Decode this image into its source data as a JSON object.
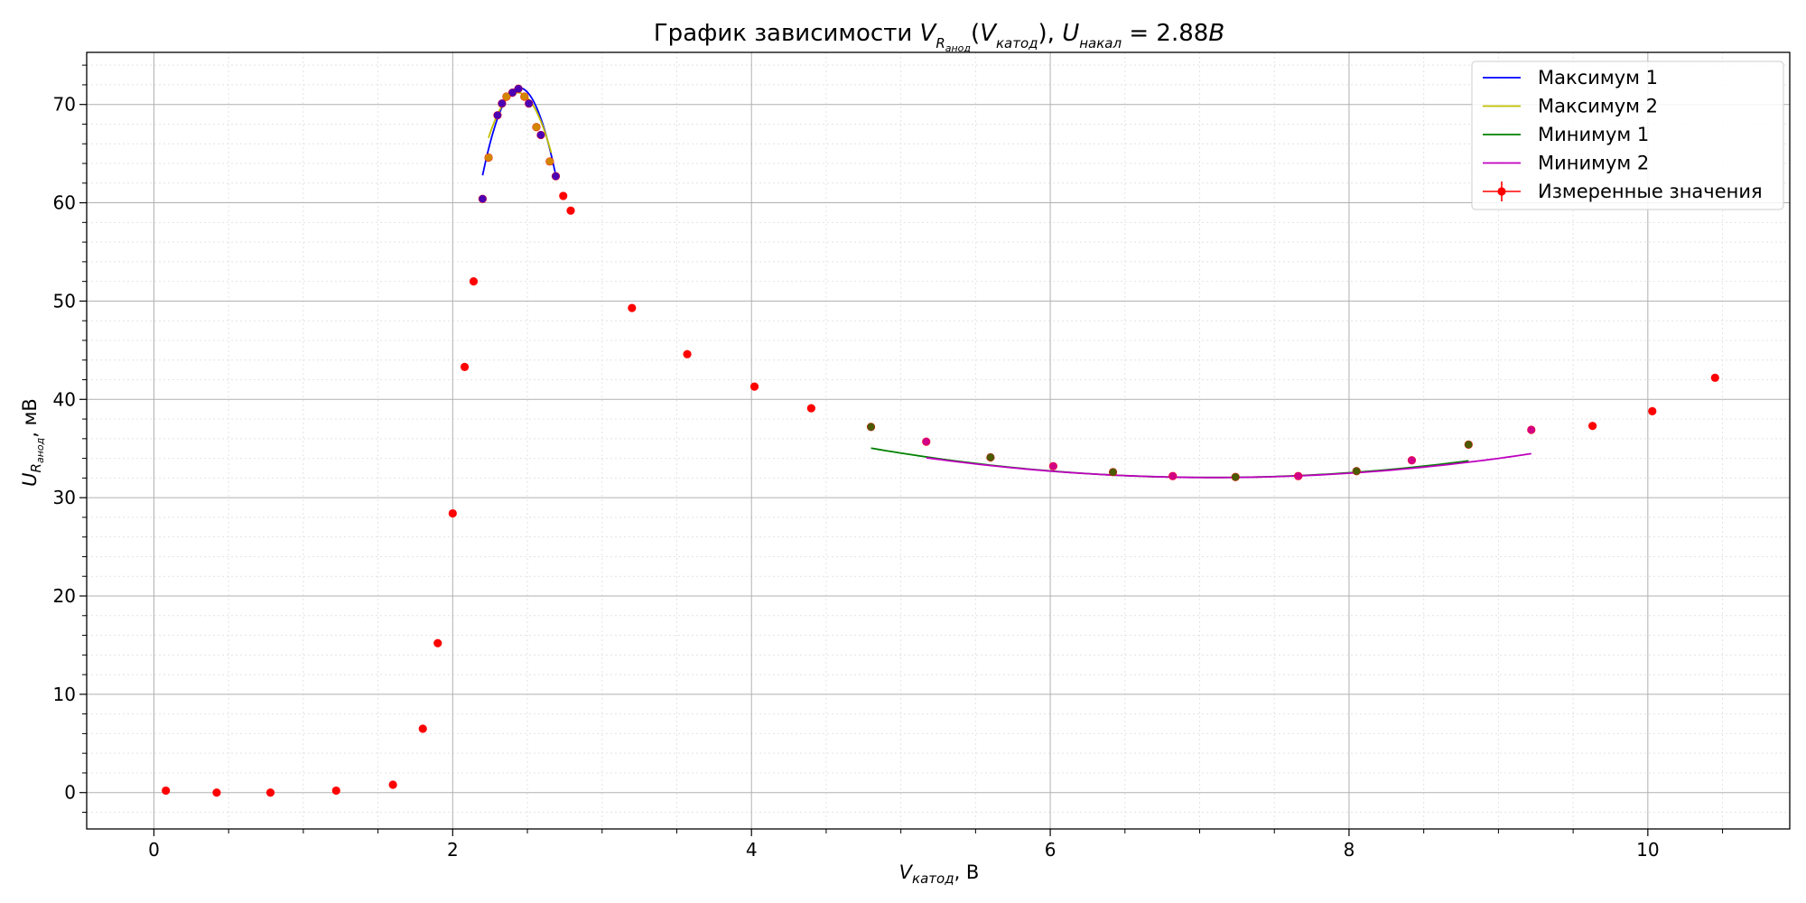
{
  "chart_data": {
    "type": "scatter",
    "title": {
      "prefix": "График зависимости ",
      "v": "V",
      "v_sub_r": "R",
      "v_sub_anod": "анод",
      "arg_open": "(",
      "arg_v": "V",
      "arg_sub": "катод",
      "arg_close": "), ",
      "u": "U",
      "u_sub": "накал",
      "eq": " = 2.88",
      "unit": "B"
    },
    "xlabel": {
      "main": "V",
      "sub": "катод",
      "unit": ", В"
    },
    "ylabel": {
      "main": "U",
      "sub_r": "R",
      "sub_anod": "анод",
      "unit": ", мВ"
    },
    "xlim": [
      -0.45,
      10.95
    ],
    "ylim": [
      -3.7,
      75.3
    ],
    "grid": true,
    "legend_placement": "top-right",
    "x_ticks": [
      0,
      2,
      4,
      6,
      8,
      10
    ],
    "y_ticks": [
      0,
      10,
      20,
      30,
      40,
      50,
      60,
      70
    ],
    "x_tick_labels": [
      "0",
      "2",
      "4",
      "6",
      "8",
      "10"
    ],
    "y_tick_labels": [
      "0",
      "10",
      "20",
      "30",
      "40",
      "50",
      "60",
      "70"
    ],
    "series": [
      {
        "name": "Измеренные значения",
        "kind": "points",
        "color": "#ff0000",
        "x": [
          0.08,
          0.42,
          0.78,
          1.22,
          1.6,
          1.8,
          1.9,
          2.0,
          2.08,
          2.14,
          2.2,
          2.24,
          2.3,
          2.33,
          2.36,
          2.4,
          2.44,
          2.48,
          2.51,
          2.56,
          2.59,
          2.65,
          2.69,
          2.74,
          2.79,
          3.2,
          3.57,
          4.02,
          4.4,
          4.8,
          5.17,
          5.6,
          6.02,
          6.42,
          6.82,
          7.24,
          7.66,
          8.05,
          8.42,
          8.8,
          9.22,
          9.63,
          10.03,
          10.45
        ],
        "y": [
          0.2,
          0.0,
          0.0,
          0.2,
          0.8,
          6.5,
          15.2,
          28.4,
          43.3,
          52.0,
          60.4,
          64.6,
          68.9,
          70.1,
          70.8,
          71.2,
          71.6,
          70.8,
          70.1,
          67.7,
          66.9,
          64.2,
          62.7,
          60.7,
          59.2,
          49.3,
          44.6,
          41.3,
          39.1,
          37.2,
          35.7,
          34.1,
          33.2,
          32.6,
          32.2,
          32.1,
          32.2,
          32.7,
          33.8,
          35.4,
          36.9,
          37.3,
          38.8,
          42.2
        ]
      },
      {
        "name": "Максимум 1",
        "kind": "fit",
        "color": "#0000ff",
        "fit": {
          "a": -148.5,
          "h": 2.445,
          "k": 71.7,
          "x_from": 2.2,
          "x_to": 2.69
        },
        "marker_x": [
          2.2,
          2.3,
          2.33,
          2.4,
          2.44,
          2.51,
          2.59,
          2.69
        ],
        "marker_y": [
          60.4,
          68.9,
          70.1,
          71.2,
          71.6,
          70.1,
          66.9,
          62.7
        ]
      },
      {
        "name": "Максимум 2",
        "kind": "fit",
        "color": "#bfbf00",
        "fit": {
          "a": -121.0,
          "h": 2.435,
          "k": 71.2,
          "x_from": 2.24,
          "x_to": 2.66
        },
        "marker_x": [
          2.24,
          2.36,
          2.48,
          2.56,
          2.65
        ],
        "marker_y": [
          64.6,
          70.8,
          70.8,
          67.7,
          64.2
        ]
      },
      {
        "name": "Минимум 1",
        "kind": "fit",
        "color": "#008000",
        "fit": {
          "a": 0.575,
          "h": 7.08,
          "k": 32.05,
          "x_from": 4.8,
          "x_to": 8.8
        },
        "marker_x": [
          4.8,
          5.6,
          6.42,
          7.24,
          8.05,
          8.8
        ],
        "marker_y": [
          37.2,
          34.1,
          32.6,
          32.1,
          32.7,
          35.4
        ]
      },
      {
        "name": "Минимум 2",
        "kind": "fit",
        "color": "#bf00bf",
        "fit": {
          "a": 0.54,
          "h": 7.1,
          "k": 32.05,
          "x_from": 5.17,
          "x_to": 9.22
        },
        "marker_x": [
          5.17,
          6.02,
          6.82,
          7.66,
          8.42,
          9.22
        ],
        "marker_y": [
          35.7,
          33.2,
          32.2,
          32.2,
          33.8,
          36.9
        ]
      }
    ]
  }
}
